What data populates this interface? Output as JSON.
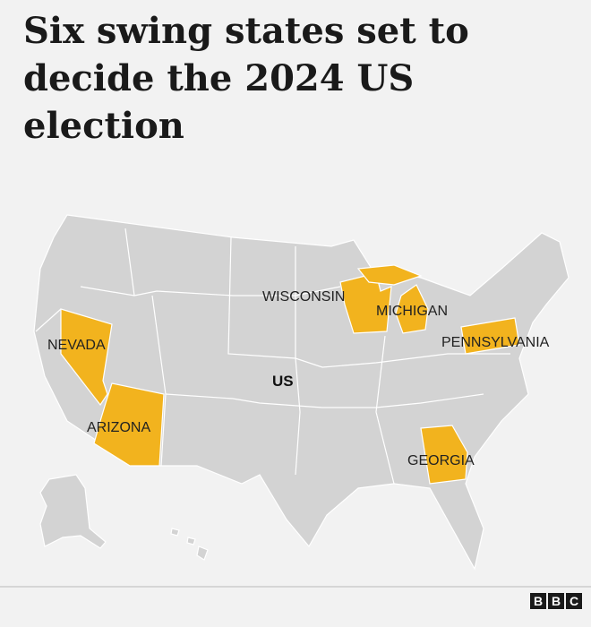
{
  "title": "Six swing states set to decide the 2024 US election",
  "map": {
    "country_label": "US",
    "states": [
      {
        "label": "WISCONSIN"
      },
      {
        "label": "MICHIGAN"
      },
      {
        "label": "PENNSYLVANIA"
      },
      {
        "label": "NEVADA"
      },
      {
        "label": "ARIZONA"
      },
      {
        "label": "GEORGIA"
      }
    ]
  },
  "footer": {
    "logo": [
      "B",
      "B",
      "C"
    ]
  }
}
